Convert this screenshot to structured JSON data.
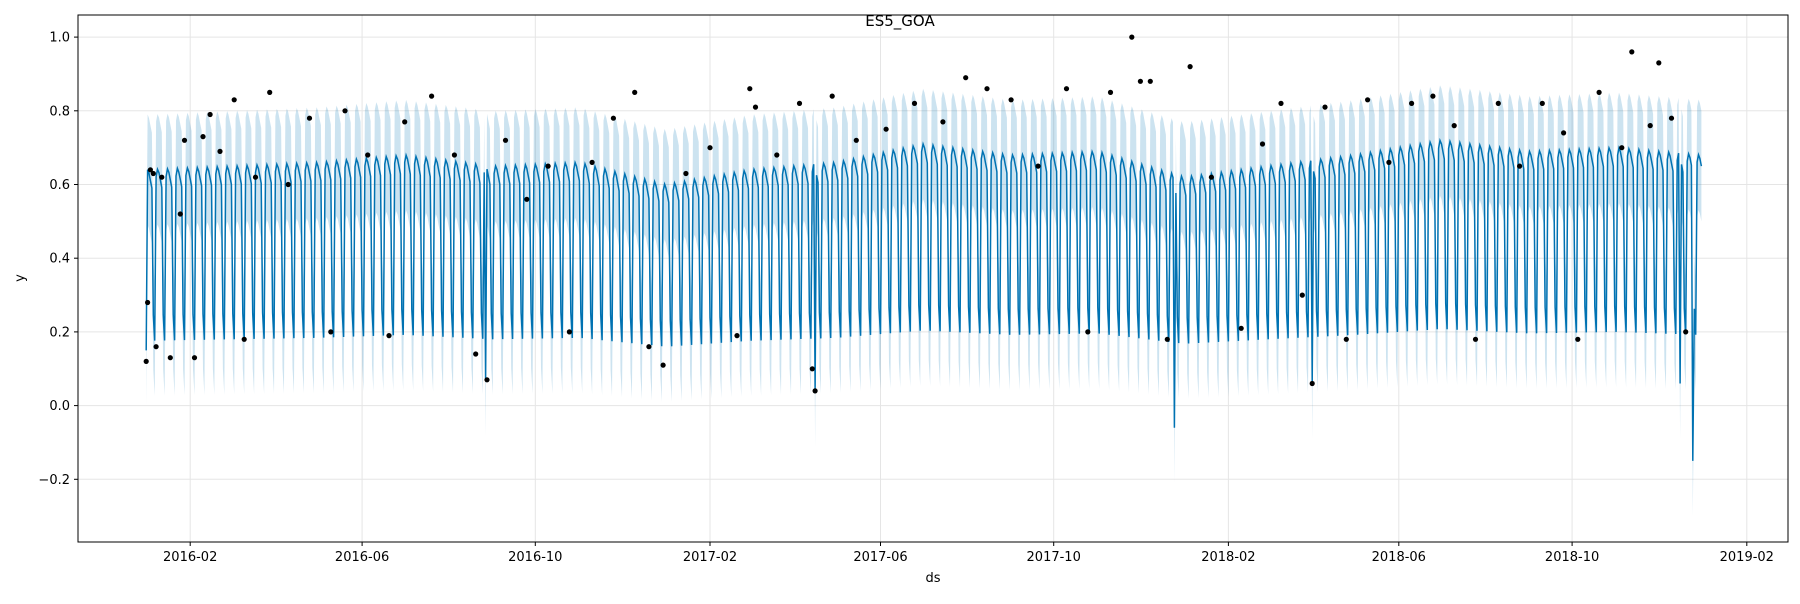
{
  "chart_data": {
    "type": "line",
    "title": "ES5_GOA",
    "xlabel": "ds",
    "ylabel": "y",
    "xlim": [
      "2015-11-14",
      "2019-03-02"
    ],
    "ylim": [
      -0.37,
      1.06
    ],
    "grid": true,
    "x_ticks": [
      "2016-02",
      "2016-06",
      "2016-10",
      "2017-02",
      "2017-06",
      "2017-10",
      "2018-02",
      "2018-06",
      "2018-10",
      "2019-02"
    ],
    "y_ticks": [
      "−0.2",
      "0.0",
      "0.2",
      "0.4",
      "0.6",
      "0.8",
      "1.0"
    ],
    "y_tick_values": [
      -0.2,
      0.0,
      0.2,
      0.4,
      0.6,
      0.8,
      1.0
    ],
    "colors": {
      "forecast": "#0072B2",
      "band": "#0072B2",
      "observed": "#000000",
      "grid": "#e5e5e5"
    },
    "series": [
      {
        "role": "forecast",
        "style": "line",
        "x_start": "2016-01-01",
        "x_end": "2018-12-31",
        "weekly_profile": [
          0.63,
          0.65,
          0.64,
          0.62,
          0.6,
          0.25,
          0.18
        ],
        "baseline_levels": [
          {
            "x": "2016-01-01",
            "y": 0.62
          },
          {
            "x": "2016-03-01",
            "y": 0.63
          },
          {
            "x": "2016-05-01",
            "y": 0.64
          },
          {
            "x": "2016-07-01",
            "y": 0.66
          },
          {
            "x": "2016-09-01",
            "y": 0.63
          },
          {
            "x": "2016-11-01",
            "y": 0.64
          },
          {
            "x": "2017-01-01",
            "y": 0.58
          },
          {
            "x": "2017-03-01",
            "y": 0.62
          },
          {
            "x": "2017-05-01",
            "y": 0.64
          },
          {
            "x": "2017-07-01",
            "y": 0.69
          },
          {
            "x": "2017-09-01",
            "y": 0.66
          },
          {
            "x": "2017-11-01",
            "y": 0.67
          },
          {
            "x": "2018-01-01",
            "y": 0.6
          },
          {
            "x": "2018-03-01",
            "y": 0.63
          },
          {
            "x": "2018-05-01",
            "y": 0.66
          },
          {
            "x": "2018-07-01",
            "y": 0.7
          },
          {
            "x": "2018-09-01",
            "y": 0.67
          },
          {
            "x": "2018-11-01",
            "y": 0.68
          },
          {
            "x": "2018-12-31",
            "y": 0.66
          }
        ],
        "band_halfwidth": 0.15,
        "dips": [
          {
            "x": "2016-08-27",
            "y": 0.07
          },
          {
            "x": "2017-04-16",
            "y": 0.04
          },
          {
            "x": "2017-12-25",
            "y": -0.06
          },
          {
            "x": "2018-04-01",
            "y": 0.06
          },
          {
            "x": "2018-12-16",
            "y": 0.06
          },
          {
            "x": "2018-12-25",
            "y": -0.15
          }
        ]
      },
      {
        "role": "observed",
        "style": "scatter",
        "points": [
          {
            "x": "2016-01-01",
            "y": 0.12
          },
          {
            "x": "2016-01-02",
            "y": 0.28
          },
          {
            "x": "2016-01-04",
            "y": 0.64
          },
          {
            "x": "2016-01-06",
            "y": 0.63
          },
          {
            "x": "2016-01-08",
            "y": 0.16
          },
          {
            "x": "2016-01-12",
            "y": 0.62
          },
          {
            "x": "2016-01-18",
            "y": 0.13
          },
          {
            "x": "2016-01-25",
            "y": 0.52
          },
          {
            "x": "2016-01-28",
            "y": 0.72
          },
          {
            "x": "2016-02-04",
            "y": 0.13
          },
          {
            "x": "2016-02-10",
            "y": 0.73
          },
          {
            "x": "2016-02-15",
            "y": 0.79
          },
          {
            "x": "2016-02-22",
            "y": 0.69
          },
          {
            "x": "2016-03-03",
            "y": 0.83
          },
          {
            "x": "2016-03-10",
            "y": 0.18
          },
          {
            "x": "2016-03-18",
            "y": 0.62
          },
          {
            "x": "2016-03-28",
            "y": 0.85
          },
          {
            "x": "2016-04-10",
            "y": 0.6
          },
          {
            "x": "2016-04-25",
            "y": 0.78
          },
          {
            "x": "2016-05-10",
            "y": 0.2
          },
          {
            "x": "2016-05-20",
            "y": 0.8
          },
          {
            "x": "2016-06-05",
            "y": 0.68
          },
          {
            "x": "2016-06-20",
            "y": 0.19
          },
          {
            "x": "2016-07-01",
            "y": 0.77
          },
          {
            "x": "2016-07-20",
            "y": 0.84
          },
          {
            "x": "2016-08-05",
            "y": 0.68
          },
          {
            "x": "2016-08-20",
            "y": 0.14
          },
          {
            "x": "2016-08-28",
            "y": 0.07
          },
          {
            "x": "2016-09-10",
            "y": 0.72
          },
          {
            "x": "2016-09-25",
            "y": 0.56
          },
          {
            "x": "2016-10-10",
            "y": 0.65
          },
          {
            "x": "2016-10-25",
            "y": 0.2
          },
          {
            "x": "2016-11-10",
            "y": 0.66
          },
          {
            "x": "2016-11-25",
            "y": 0.78
          },
          {
            "x": "2016-12-10",
            "y": 0.85
          },
          {
            "x": "2016-12-20",
            "y": 0.16
          },
          {
            "x": "2016-12-30",
            "y": 0.11
          },
          {
            "x": "2017-01-15",
            "y": 0.63
          },
          {
            "x": "2017-02-01",
            "y": 0.7
          },
          {
            "x": "2017-02-20",
            "y": 0.19
          },
          {
            "x": "2017-03-01",
            "y": 0.86
          },
          {
            "x": "2017-03-05",
            "y": 0.81
          },
          {
            "x": "2017-03-20",
            "y": 0.68
          },
          {
            "x": "2017-04-05",
            "y": 0.82
          },
          {
            "x": "2017-04-14",
            "y": 0.1
          },
          {
            "x": "2017-04-16",
            "y": 0.04
          },
          {
            "x": "2017-04-28",
            "y": 0.84
          },
          {
            "x": "2017-05-15",
            "y": 0.72
          },
          {
            "x": "2017-06-05",
            "y": 0.75
          },
          {
            "x": "2017-06-25",
            "y": 0.82
          },
          {
            "x": "2017-07-15",
            "y": 0.77
          },
          {
            "x": "2017-07-31",
            "y": 0.89
          },
          {
            "x": "2017-08-15",
            "y": 0.86
          },
          {
            "x": "2017-09-01",
            "y": 0.83
          },
          {
            "x": "2017-09-20",
            "y": 0.65
          },
          {
            "x": "2017-10-10",
            "y": 0.86
          },
          {
            "x": "2017-10-25",
            "y": 0.2
          },
          {
            "x": "2017-11-10",
            "y": 0.85
          },
          {
            "x": "2017-11-25",
            "y": 1.0
          },
          {
            "x": "2017-12-01",
            "y": 0.88
          },
          {
            "x": "2017-12-08",
            "y": 0.88
          },
          {
            "x": "2017-12-20",
            "y": 0.18
          },
          {
            "x": "2018-01-05",
            "y": 0.92
          },
          {
            "x": "2018-01-20",
            "y": 0.62
          },
          {
            "x": "2018-02-10",
            "y": 0.21
          },
          {
            "x": "2018-02-25",
            "y": 0.71
          },
          {
            "x": "2018-03-10",
            "y": 0.82
          },
          {
            "x": "2018-03-25",
            "y": 0.3
          },
          {
            "x": "2018-04-01",
            "y": 0.06
          },
          {
            "x": "2018-04-10",
            "y": 0.81
          },
          {
            "x": "2018-04-25",
            "y": 0.18
          },
          {
            "x": "2018-05-10",
            "y": 0.83
          },
          {
            "x": "2018-05-25",
            "y": 0.66
          },
          {
            "x": "2018-06-10",
            "y": 0.82
          },
          {
            "x": "2018-06-25",
            "y": 0.84
          },
          {
            "x": "2018-07-10",
            "y": 0.76
          },
          {
            "x": "2018-07-25",
            "y": 0.18
          },
          {
            "x": "2018-08-10",
            "y": 0.82
          },
          {
            "x": "2018-08-25",
            "y": 0.65
          },
          {
            "x": "2018-09-10",
            "y": 0.82
          },
          {
            "x": "2018-09-25",
            "y": 0.74
          },
          {
            "x": "2018-10-05",
            "y": 0.18
          },
          {
            "x": "2018-10-20",
            "y": 0.85
          },
          {
            "x": "2018-11-05",
            "y": 0.7
          },
          {
            "x": "2018-11-12",
            "y": 0.96
          },
          {
            "x": "2018-11-25",
            "y": 0.76
          },
          {
            "x": "2018-12-01",
            "y": 0.93
          },
          {
            "x": "2018-12-10",
            "y": 0.78
          },
          {
            "x": "2018-12-20",
            "y": 0.2
          }
        ]
      }
    ]
  }
}
